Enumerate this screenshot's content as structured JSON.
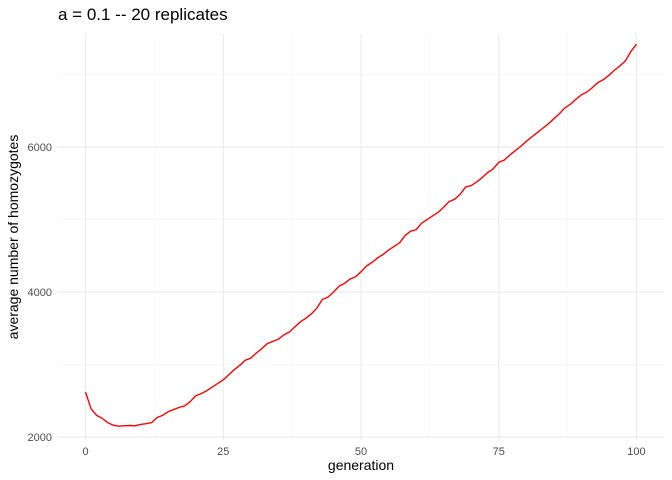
{
  "chart_data": {
    "type": "line",
    "title": "a = 0.1 -- 20 replicates",
    "xlabel": "generation",
    "ylabel": "average number of homozygotes",
    "xlim": [
      -5,
      105
    ],
    "ylim": [
      1960,
      7560
    ],
    "x_ticks": [
      0,
      25,
      50,
      75,
      100
    ],
    "x_tick_labels": [
      "0",
      "25",
      "50",
      "75",
      "100"
    ],
    "y_ticks": [
      2000,
      4000,
      6000
    ],
    "y_tick_labels": [
      "2000",
      "4000",
      "6000"
    ],
    "grid": true,
    "legend": "none",
    "series": [
      {
        "name": "average homozygotes",
        "color": "#ff0000",
        "x": [
          0,
          1,
          2,
          3,
          4,
          5,
          6,
          7,
          8,
          9,
          10,
          11,
          12,
          13,
          14,
          15,
          16,
          17,
          18,
          19,
          20,
          21,
          22,
          23,
          24,
          25,
          26,
          27,
          28,
          29,
          30,
          31,
          32,
          33,
          34,
          35,
          36,
          37,
          38,
          39,
          40,
          41,
          42,
          43,
          44,
          45,
          46,
          47,
          48,
          49,
          50,
          51,
          52,
          53,
          54,
          55,
          56,
          57,
          58,
          59,
          60,
          61,
          62,
          63,
          64,
          65,
          66,
          67,
          68,
          69,
          70,
          71,
          72,
          73,
          74,
          75,
          76,
          77,
          78,
          79,
          80,
          81,
          82,
          83,
          84,
          85,
          86,
          87,
          88,
          89,
          90,
          91,
          92,
          93,
          94,
          95,
          96,
          97,
          98,
          99,
          100
        ],
        "values": [
          2620,
          2390,
          2300,
          2260,
          2200,
          2165,
          2150,
          2155,
          2160,
          2155,
          2175,
          2185,
          2200,
          2270,
          2300,
          2350,
          2380,
          2410,
          2430,
          2490,
          2570,
          2600,
          2640,
          2690,
          2740,
          2790,
          2860,
          2930,
          2990,
          3060,
          3090,
          3160,
          3220,
          3290,
          3320,
          3350,
          3410,
          3450,
          3520,
          3590,
          3640,
          3700,
          3780,
          3900,
          3930,
          4000,
          4080,
          4120,
          4180,
          4210,
          4280,
          4360,
          4410,
          4470,
          4520,
          4580,
          4630,
          4680,
          4780,
          4840,
          4860,
          4950,
          5000,
          5050,
          5100,
          5170,
          5250,
          5280,
          5350,
          5450,
          5470,
          5520,
          5580,
          5650,
          5700,
          5790,
          5820,
          5890,
          5950,
          6010,
          6080,
          6140,
          6200,
          6260,
          6320,
          6390,
          6460,
          6540,
          6590,
          6660,
          6720,
          6760,
          6820,
          6890,
          6930,
          6990,
          7060,
          7120,
          7190,
          7320,
          7420
        ]
      }
    ]
  }
}
